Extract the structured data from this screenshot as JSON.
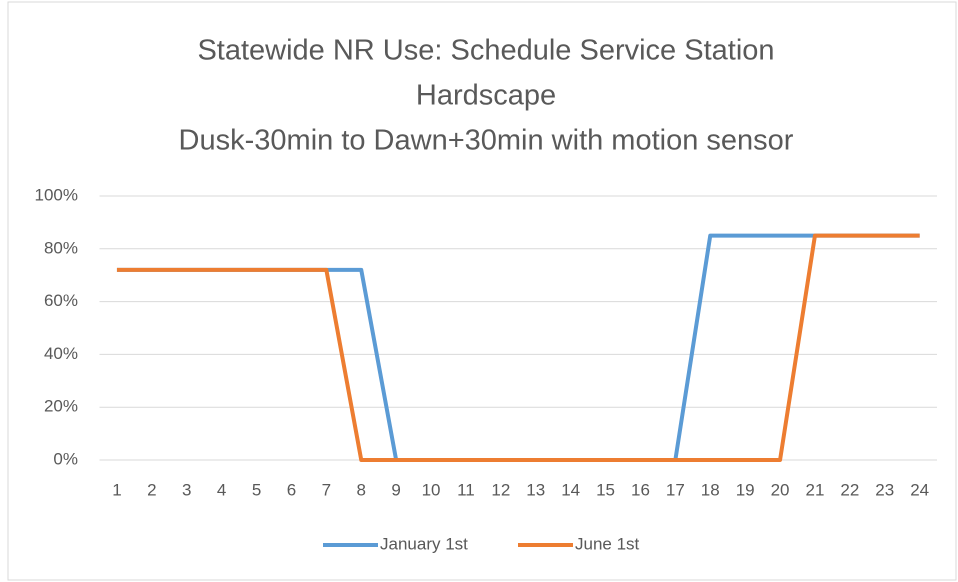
{
  "chart_data": {
    "type": "line",
    "title": [
      "Statewide NR Use: Schedule Service Station",
      "Hardscape",
      "Dusk-30min to Dawn+30min with motion sensor"
    ],
    "categories": [
      "1",
      "2",
      "3",
      "4",
      "5",
      "6",
      "7",
      "8",
      "9",
      "10",
      "11",
      "12",
      "13",
      "14",
      "15",
      "16",
      "17",
      "18",
      "19",
      "20",
      "21",
      "22",
      "23",
      "24"
    ],
    "series": [
      {
        "name": "January 1st",
        "color": "#5b9bd5",
        "values": [
          72,
          72,
          72,
          72,
          72,
          72,
          72,
          72,
          0,
          0,
          0,
          0,
          0,
          0,
          0,
          0,
          0,
          85,
          85,
          85,
          85,
          85,
          85,
          85
        ]
      },
      {
        "name": "June 1st",
        "color": "#ed7d31",
        "values": [
          72,
          72,
          72,
          72,
          72,
          72,
          72,
          0,
          0,
          0,
          0,
          0,
          0,
          0,
          0,
          0,
          0,
          0,
          0,
          0,
          85,
          85,
          85,
          85
        ]
      }
    ],
    "ylim": [
      0,
      100
    ],
    "yticks": [
      {
        "value": 0,
        "label": "0%"
      },
      {
        "value": 20,
        "label": "20%"
      },
      {
        "value": 40,
        "label": "40%"
      },
      {
        "value": 60,
        "label": "60%"
      },
      {
        "value": 80,
        "label": "80%"
      },
      {
        "value": 100,
        "label": "100%"
      }
    ],
    "grid": true,
    "legend": "bottom"
  }
}
